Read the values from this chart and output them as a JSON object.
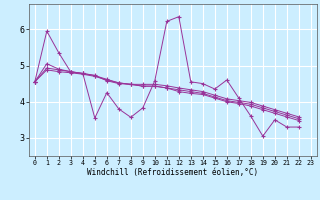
{
  "title": "",
  "xlabel": "Windchill (Refroidissement éolien,°C)",
  "background_color": "#cceeff",
  "grid_color": "#ffffff",
  "line_color": "#993399",
  "xlim": [
    -0.5,
    23.5
  ],
  "ylim": [
    2.5,
    6.7
  ],
  "yticks": [
    3,
    4,
    5,
    6
  ],
  "xticks": [
    0,
    1,
    2,
    3,
    4,
    5,
    6,
    7,
    8,
    9,
    10,
    11,
    12,
    13,
    14,
    15,
    16,
    17,
    18,
    19,
    20,
    21,
    22,
    23
  ],
  "series": [
    [
      4.55,
      5.95,
      5.35,
      4.82,
      4.78,
      3.55,
      4.25,
      3.8,
      3.57,
      3.83,
      4.58,
      6.22,
      6.35,
      4.55,
      4.5,
      4.35,
      4.6,
      4.1,
      3.6,
      3.05,
      3.5,
      3.3,
      3.3
    ],
    [
      4.55,
      5.05,
      4.9,
      4.83,
      4.78,
      4.73,
      4.58,
      4.5,
      4.48,
      4.48,
      4.48,
      4.44,
      4.38,
      4.33,
      4.28,
      4.18,
      4.08,
      4.03,
      3.98,
      3.88,
      3.78,
      3.68,
      3.58
    ],
    [
      4.55,
      4.93,
      4.88,
      4.83,
      4.78,
      4.72,
      4.62,
      4.52,
      4.48,
      4.43,
      4.43,
      4.38,
      4.33,
      4.28,
      4.23,
      4.13,
      4.03,
      3.98,
      3.93,
      3.83,
      3.73,
      3.63,
      3.53
    ],
    [
      4.55,
      4.88,
      4.83,
      4.8,
      4.76,
      4.7,
      4.6,
      4.52,
      4.48,
      4.43,
      4.43,
      4.38,
      4.28,
      4.23,
      4.2,
      4.1,
      4.0,
      3.95,
      3.88,
      3.78,
      3.68,
      3.58,
      3.48
    ]
  ],
  "x_values": [
    0,
    1,
    2,
    3,
    4,
    5,
    6,
    7,
    8,
    9,
    10,
    11,
    12,
    13,
    14,
    15,
    16,
    17,
    18,
    19,
    20,
    21,
    22
  ]
}
